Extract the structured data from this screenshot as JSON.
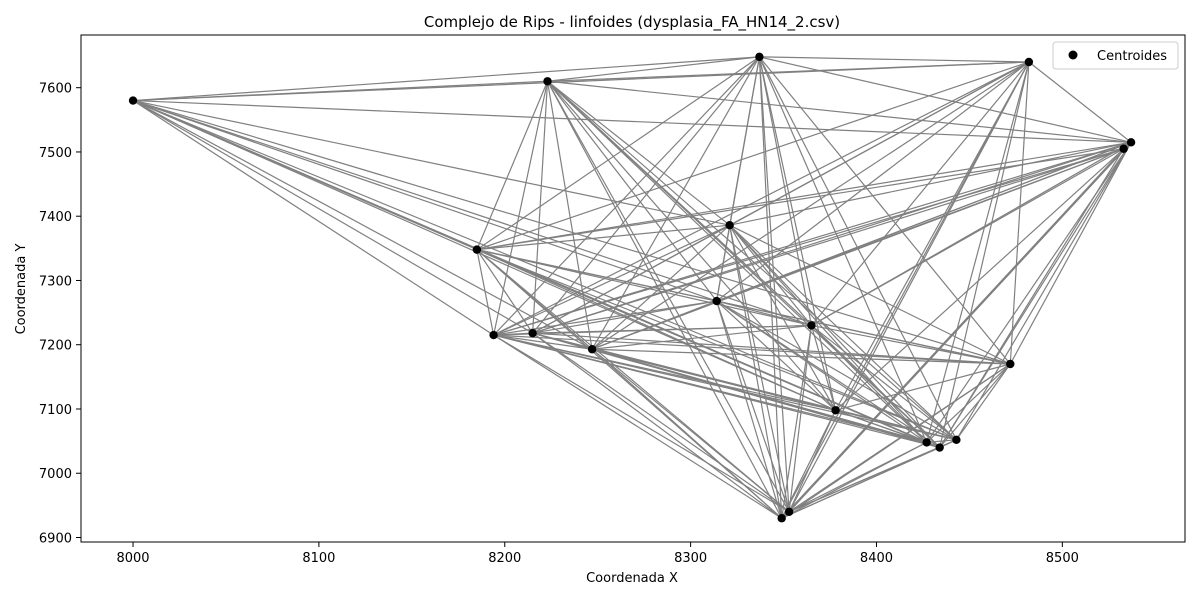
{
  "chart_data": {
    "type": "scatter",
    "title": "Complejo de Rips - linfoides (dysplasia_FA_HN14_2.csv)",
    "xlabel": "Coordenada X",
    "ylabel": "Coordenada Y",
    "xlim": [
      7972,
      8566
    ],
    "ylim": [
      6893,
      7682
    ],
    "xticks": [
      8000,
      8100,
      8200,
      8300,
      8400,
      8500
    ],
    "yticks": [
      6900,
      7000,
      7100,
      7200,
      7300,
      7400,
      7500,
      7600
    ],
    "legend": {
      "position": "top-right",
      "entries": [
        "Centroides"
      ]
    },
    "colors": {
      "points": "#000000",
      "edges": "#808080",
      "frame": "#000000"
    },
    "series": [
      {
        "name": "Centroides",
        "points": [
          [
            8000,
            7580
          ],
          [
            8223,
            7610
          ],
          [
            8337,
            7648
          ],
          [
            8482,
            7640
          ],
          [
            8537,
            7515
          ],
          [
            8533,
            7505
          ],
          [
            8185,
            7348
          ],
          [
            8321,
            7386
          ],
          [
            8314,
            7268
          ],
          [
            8194,
            7215
          ],
          [
            8215,
            7218
          ],
          [
            8247,
            7193
          ],
          [
            8365,
            7230
          ],
          [
            8378,
            7098
          ],
          [
            8472,
            7170
          ],
          [
            8427,
            7048
          ],
          [
            8434,
            7040
          ],
          [
            8443,
            7052
          ],
          [
            8353,
            6940
          ],
          [
            8349,
            6930
          ]
        ]
      }
    ],
    "edges": [
      [
        0,
        1
      ],
      [
        0,
        2
      ],
      [
        0,
        3
      ],
      [
        0,
        4
      ],
      [
        0,
        6
      ],
      [
        0,
        7
      ],
      [
        0,
        8
      ],
      [
        0,
        9
      ],
      [
        0,
        10
      ],
      [
        0,
        11
      ],
      [
        0,
        12
      ],
      [
        0,
        13
      ],
      [
        0,
        14
      ],
      [
        0,
        15
      ],
      [
        0,
        16
      ],
      [
        0,
        17
      ],
      [
        1,
        2
      ],
      [
        1,
        3
      ],
      [
        1,
        4
      ],
      [
        1,
        6
      ],
      [
        1,
        7
      ],
      [
        1,
        8
      ],
      [
        1,
        9
      ],
      [
        1,
        10
      ],
      [
        1,
        11
      ],
      [
        1,
        12
      ],
      [
        1,
        13
      ],
      [
        1,
        15
      ],
      [
        1,
        16
      ],
      [
        1,
        17
      ],
      [
        1,
        18
      ],
      [
        1,
        19
      ],
      [
        2,
        3
      ],
      [
        2,
        4
      ],
      [
        2,
        6
      ],
      [
        2,
        7
      ],
      [
        2,
        8
      ],
      [
        2,
        9
      ],
      [
        2,
        10
      ],
      [
        2,
        11
      ],
      [
        2,
        12
      ],
      [
        2,
        13
      ],
      [
        2,
        14
      ],
      [
        2,
        15
      ],
      [
        2,
        17
      ],
      [
        2,
        18
      ],
      [
        2,
        19
      ],
      [
        3,
        4
      ],
      [
        3,
        6
      ],
      [
        3,
        7
      ],
      [
        3,
        8
      ],
      [
        3,
        9
      ],
      [
        3,
        10
      ],
      [
        3,
        11
      ],
      [
        3,
        12
      ],
      [
        3,
        13
      ],
      [
        3,
        14
      ],
      [
        3,
        15
      ],
      [
        3,
        16
      ],
      [
        3,
        18
      ],
      [
        3,
        19
      ],
      [
        4,
        6
      ],
      [
        4,
        7
      ],
      [
        4,
        8
      ],
      [
        4,
        9
      ],
      [
        4,
        10
      ],
      [
        4,
        11
      ],
      [
        4,
        12
      ],
      [
        4,
        13
      ],
      [
        4,
        14
      ],
      [
        4,
        15
      ],
      [
        4,
        16
      ],
      [
        4,
        17
      ],
      [
        4,
        18
      ],
      [
        4,
        19
      ],
      [
        5,
        6
      ],
      [
        5,
        8
      ],
      [
        5,
        9
      ],
      [
        5,
        10
      ],
      [
        5,
        11
      ],
      [
        5,
        12
      ],
      [
        5,
        16
      ],
      [
        5,
        19
      ],
      [
        6,
        7
      ],
      [
        6,
        8
      ],
      [
        6,
        9
      ],
      [
        6,
        10
      ],
      [
        6,
        11
      ],
      [
        6,
        12
      ],
      [
        6,
        13
      ],
      [
        6,
        14
      ],
      [
        6,
        15
      ],
      [
        6,
        16
      ],
      [
        6,
        17
      ],
      [
        6,
        18
      ],
      [
        6,
        19
      ],
      [
        7,
        8
      ],
      [
        7,
        9
      ],
      [
        7,
        10
      ],
      [
        7,
        11
      ],
      [
        7,
        12
      ],
      [
        7,
        13
      ],
      [
        7,
        14
      ],
      [
        7,
        15
      ],
      [
        7,
        16
      ],
      [
        7,
        17
      ],
      [
        7,
        18
      ],
      [
        7,
        19
      ],
      [
        8,
        9
      ],
      [
        8,
        10
      ],
      [
        8,
        11
      ],
      [
        8,
        12
      ],
      [
        8,
        13
      ],
      [
        8,
        14
      ],
      [
        8,
        15
      ],
      [
        8,
        16
      ],
      [
        8,
        17
      ],
      [
        8,
        18
      ],
      [
        8,
        19
      ],
      [
        9,
        10
      ],
      [
        9,
        11
      ],
      [
        9,
        12
      ],
      [
        9,
        13
      ],
      [
        9,
        14
      ],
      [
        9,
        15
      ],
      [
        9,
        16
      ],
      [
        9,
        17
      ],
      [
        9,
        18
      ],
      [
        9,
        19
      ],
      [
        10,
        11
      ],
      [
        10,
        12
      ],
      [
        10,
        13
      ],
      [
        10,
        14
      ],
      [
        10,
        15
      ],
      [
        10,
        16
      ],
      [
        10,
        17
      ],
      [
        10,
        18
      ],
      [
        10,
        19
      ],
      [
        11,
        12
      ],
      [
        11,
        13
      ],
      [
        11,
        14
      ],
      [
        11,
        15
      ],
      [
        11,
        16
      ],
      [
        11,
        17
      ],
      [
        11,
        18
      ],
      [
        11,
        19
      ],
      [
        12,
        13
      ],
      [
        12,
        14
      ],
      [
        12,
        15
      ],
      [
        12,
        16
      ],
      [
        12,
        17
      ],
      [
        12,
        18
      ],
      [
        12,
        19
      ],
      [
        13,
        14
      ],
      [
        13,
        15
      ],
      [
        13,
        16
      ],
      [
        13,
        17
      ],
      [
        13,
        18
      ],
      [
        13,
        19
      ],
      [
        14,
        15
      ],
      [
        14,
        16
      ],
      [
        14,
        17
      ],
      [
        14,
        18
      ],
      [
        14,
        19
      ],
      [
        15,
        16
      ],
      [
        15,
        17
      ],
      [
        15,
        18
      ],
      [
        15,
        19
      ],
      [
        16,
        17
      ],
      [
        16,
        18
      ],
      [
        16,
        19
      ],
      [
        17,
        18
      ],
      [
        17,
        19
      ],
      [
        18,
        19
      ]
    ]
  }
}
